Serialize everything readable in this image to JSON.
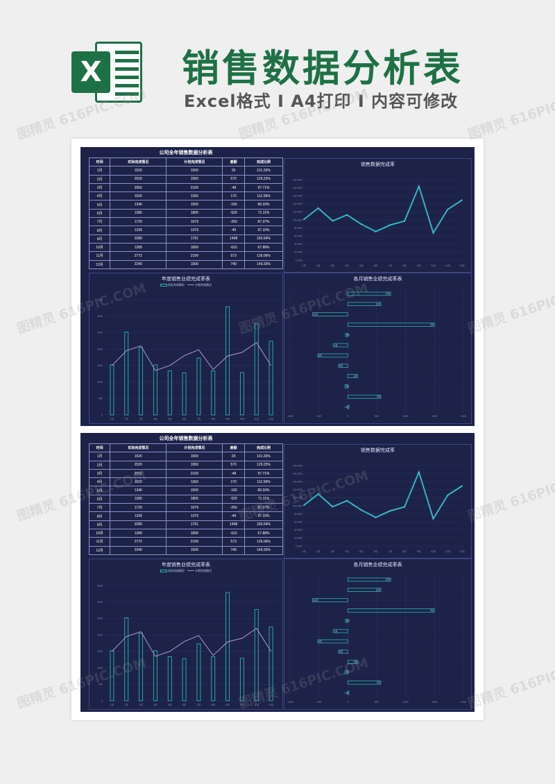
{
  "header": {
    "title": "销售数据分析表",
    "subtitle": "Excel格式 I A4打印 I 内容可修改",
    "logo_letter": "X"
  },
  "watermark": {
    "text": "图精灵 616PIC.COM"
  },
  "colors": {
    "brand": "#1e7146",
    "sheet_bg": "#1d2248",
    "bar": "#2bb7b3",
    "line": "#a68ed1",
    "glow": "#3de0e8"
  },
  "sheets": [
    {
      "table": {
        "title": "公司全年销售数据分析表",
        "columns": [
          "时间",
          "实际完成情况",
          "计划完成情况",
          "差额",
          "完成比例"
        ],
        "rows": [
          [
            "1月",
            "1520",
            "1500",
            "20",
            "101.33%"
          ],
          [
            "2月",
            "2520",
            "1950",
            "570",
            "129.23%"
          ],
          [
            "3月",
            "2052",
            "2100",
            "-48",
            "97.71%"
          ],
          [
            "4月",
            "1520",
            "1350",
            "170",
            "112.59%"
          ],
          [
            "5月",
            "1340",
            "1500",
            "-160",
            "89.33%"
          ],
          [
            "6月",
            "1280",
            "1800",
            "-520",
            "71.11%"
          ],
          [
            "7月",
            "1729",
            "1979",
            "-250",
            "87.37%"
          ],
          [
            "8月",
            "1339",
            "1379",
            "-40",
            "97.10%"
          ],
          [
            "9月",
            "3289",
            "1791",
            "1498",
            "183.64%"
          ],
          [
            "10月",
            "1289",
            "1899",
            "-610",
            "67.88%"
          ],
          [
            "11月",
            "2772",
            "2199",
            "573",
            "126.06%"
          ],
          [
            "12月",
            "2240",
            "1500",
            "740",
            "149.33%"
          ]
        ]
      },
      "line_title": "销售数据完成率",
      "bar_title": "年度销售业绩完成率表",
      "bar_legend": [
        "实际完成情况",
        "计划完成情况"
      ],
      "hbar_title": "各月销售业绩完成率表"
    },
    {
      "table": {
        "title": "公司全年销售数据分析表",
        "columns": [
          "时间",
          "实际完成情况",
          "计划完成情况",
          "差额",
          "完成比例"
        ],
        "rows": [
          [
            "1月",
            "1520",
            "1500",
            "20",
            "101.33%"
          ],
          [
            "2月",
            "2520",
            "1950",
            "570",
            "129.23%"
          ],
          [
            "3月",
            "2052",
            "2100",
            "-48",
            "97.71%"
          ],
          [
            "4月",
            "1520",
            "1350",
            "170",
            "112.59%"
          ],
          [
            "5月",
            "1340",
            "1500",
            "-160",
            "89.33%"
          ],
          [
            "6月",
            "1280",
            "1800",
            "-520",
            "71.11%"
          ],
          [
            "7月",
            "1729",
            "1979",
            "-250",
            "87.37%"
          ],
          [
            "8月",
            "1339",
            "1379",
            "-40",
            "97.10%"
          ],
          [
            "9月",
            "3289",
            "1791",
            "1498",
            "183.64%"
          ],
          [
            "10月",
            "1289",
            "1899",
            "-610",
            "67.88%"
          ],
          [
            "11月",
            "2772",
            "2199",
            "573",
            "126.06%"
          ],
          [
            "12月",
            "2240",
            "1500",
            "740",
            "149.33%"
          ]
        ]
      },
      "line_title": "销售数据完成率",
      "bar_title": "年度销售业绩完成率表",
      "bar_legend": [
        "实际完成情况",
        "计划完成情况"
      ],
      "hbar_title": "各月销售业绩完成率表"
    }
  ],
  "chart_data": [
    {
      "type": "line",
      "title": "销售数据完成率",
      "x": [
        "1月",
        "2月",
        "3月",
        "4月",
        "5月",
        "6月",
        "7月",
        "8月",
        "9月",
        "10月",
        "11月",
        "12月"
      ],
      "values": [
        101.33,
        129.23,
        97.71,
        112.59,
        89.33,
        71.11,
        87.37,
        97.1,
        183.64,
        67.88,
        126.06,
        149.33
      ],
      "ylim": [
        0,
        200
      ],
      "y_ticks": [
        "0.00%",
        "20.00%",
        "40.00%",
        "60.00%",
        "80.00%",
        "100.00%",
        "120.00%",
        "140.00%",
        "160.00%",
        "180.00%",
        "200.00%"
      ],
      "grid": true
    },
    {
      "type": "bar",
      "title": "年度销售业绩完成率表",
      "categories": [
        "1月",
        "2月",
        "3月",
        "4月",
        "5月",
        "6月",
        "7月",
        "8月",
        "9月",
        "10月",
        "11月",
        "12月"
      ],
      "x_tick_labels": [
        "1月",
        "2月",
        "3月",
        "4月",
        "5月",
        "6月",
        "7月",
        "8月",
        "9月",
        "10月",
        "11月",
        "12月"
      ],
      "series": [
        {
          "name": "实际完成情况",
          "values": [
            1520,
            2520,
            2052,
            1520,
            1340,
            1280,
            1729,
            1339,
            3289,
            1289,
            2772,
            2240
          ]
        },
        {
          "name": "计划完成情况",
          "values": [
            1500,
            1950,
            2100,
            1350,
            1500,
            1800,
            1979,
            1379,
            1791,
            1899,
            2199,
            1500
          ]
        }
      ],
      "ylim": [
        0,
        3500
      ],
      "y_ticks": [
        "0",
        "500",
        "1000",
        "1500",
        "2000",
        "2500",
        "3000",
        "3500"
      ],
      "legend": "top",
      "grid": true
    },
    {
      "type": "bar",
      "orientation": "horizontal",
      "title": "各月销售业绩完成率表",
      "categories": [
        "1月",
        "2月",
        "3月",
        "4月",
        "5月",
        "6月",
        "7月",
        "8月",
        "9月",
        "10月",
        "11月",
        "12月"
      ],
      "values": [
        20,
        570,
        -48,
        170,
        -160,
        -520,
        -250,
        -40,
        1498,
        -610,
        573,
        740
      ],
      "xlim": [
        -1000,
        2000
      ],
      "x_ticks": [
        "-1000",
        "-500",
        "0",
        "500",
        "1000",
        "1500",
        "2000"
      ]
    }
  ]
}
